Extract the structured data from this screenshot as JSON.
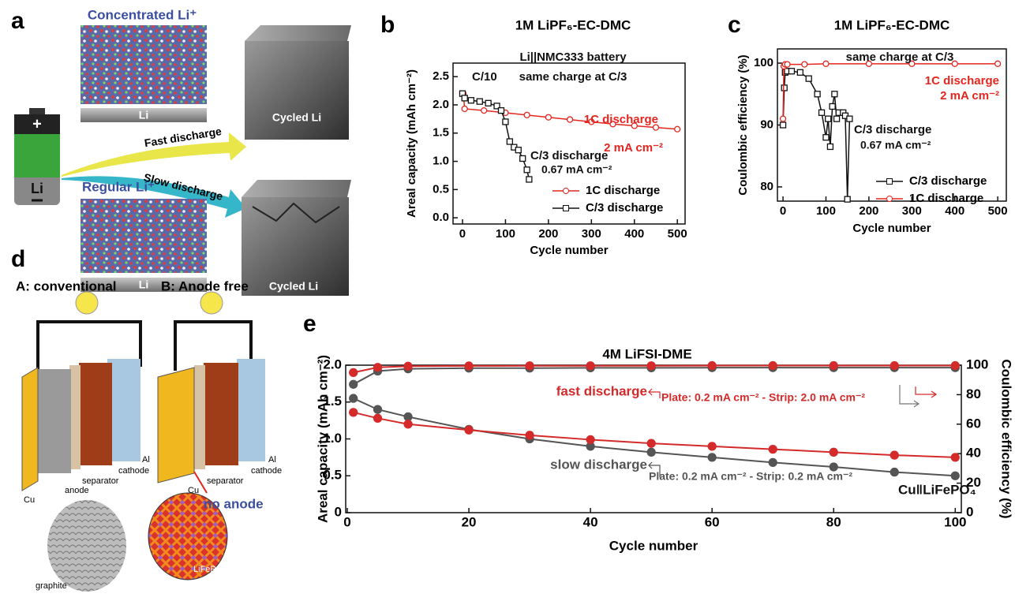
{
  "panel_a": {
    "label": "a",
    "concentrated": "Concentrated Li⁺",
    "li_top": "Li",
    "fast": "Fast discharge",
    "slow": "Slow discharge",
    "regular": "Regular Li⁺",
    "li_bottom": "Li",
    "battery_plus": "+",
    "battery_li": "Li",
    "cycled_top": "Cycled Li",
    "cycled_bottom": "Cycled Li"
  },
  "panel_d": {
    "label": "d",
    "title_a": "A: conventional",
    "title_b": "B: Anode free",
    "a_labels": [
      "Al",
      "cathode",
      "separator",
      "anode",
      "Cu",
      "graphite"
    ],
    "b_labels": [
      "Al",
      "cathode",
      "separator",
      "Cu",
      "no anode",
      "LiFePO₄"
    ]
  },
  "chart_data": [
    {
      "type": "line",
      "panel_label": "b",
      "title": "1M LiPF₆-EC-DMC",
      "x_label": "Cycle number",
      "y_label": "Areal capacity (mAh cm⁻²)",
      "xlim": [
        -22,
        518
      ],
      "ylim": [
        -0.11,
        2.74
      ],
      "xticks": [
        0,
        100,
        200,
        300,
        400,
        500
      ],
      "yticks": [
        {
          "value": 0,
          "label": "0.0"
        },
        0.5,
        {
          "value": 1,
          "label": "1.0"
        },
        1.5,
        {
          "value": 2,
          "label": "2.0"
        },
        2.5
      ],
      "legend": true,
      "annotations": [
        "C/10",
        "Li||NMC333 battery",
        "same charge at C/3",
        "1C discharge",
        "2 mA cm⁻²",
        "C/3 discharge",
        "0.67 mA cm⁻²"
      ],
      "series": [
        {
          "name": "1C discharge",
          "color": "#e3261f",
          "marker": "circle",
          "x": [
            0,
            2,
            5,
            50,
            100,
            150,
            200,
            250,
            300,
            350,
            400,
            450,
            500
          ],
          "values": [
            2.2,
            2.2,
            1.93,
            1.9,
            1.86,
            1.82,
            1.78,
            1.74,
            1.7,
            1.66,
            1.63,
            1.6,
            1.57
          ]
        },
        {
          "name": "C/3 discharge",
          "color": "#111111",
          "marker": "square",
          "x": [
            0,
            5,
            20,
            40,
            60,
            80,
            90,
            100,
            110,
            120,
            130,
            140,
            150,
            155
          ],
          "values": [
            2.2,
            2.12,
            2.08,
            2.06,
            2.03,
            1.98,
            1.9,
            1.7,
            1.35,
            1.25,
            1.2,
            1.05,
            0.85,
            0.68
          ]
        }
      ]
    },
    {
      "type": "line",
      "panel_label": "c",
      "title": "1M LiPF₆-EC-DMC",
      "x_label": "Cycle number",
      "y_label": "Coulombic efficiency (%)",
      "xlim": [
        -13,
        520
      ],
      "ylim": [
        77.7,
        102.3
      ],
      "xticks": [
        0,
        100,
        200,
        300,
        400,
        500
      ],
      "yticks": [
        80,
        90,
        100
      ],
      "legend": true,
      "annotations": [
        "same charge at C/3",
        "1C discharge",
        "2 mA cm⁻²",
        "C/3 discharge",
        "0.67 mA cm⁻²"
      ],
      "series": [
        {
          "name": "C/3 discharge",
          "color": "#111111",
          "marker": "square",
          "x": [
            0,
            3,
            5,
            10,
            20,
            40,
            60,
            80,
            90,
            100,
            105,
            110,
            115,
            120,
            125,
            130,
            140,
            145,
            150,
            155
          ],
          "values": [
            90,
            96,
            98.5,
            98.7,
            98.7,
            98.5,
            97.5,
            95,
            92,
            88,
            91,
            86.5,
            93,
            95,
            91,
            92,
            92,
            91.5,
            78,
            91
          ]
        },
        {
          "name": "1C discharge",
          "color": "#e3261f",
          "marker": "circle",
          "x": [
            0,
            2,
            5,
            10,
            50,
            100,
            200,
            300,
            400,
            500
          ],
          "values": [
            91,
            99.5,
            99.8,
            99.8,
            99.8,
            99.9,
            99.9,
            99.9,
            99.9,
            99.9
          ]
        }
      ]
    },
    {
      "type": "line",
      "panel_label": "e",
      "title": "4M LiFSI-DME",
      "x_label": "Cycle number",
      "y_label": "Areal capacity (mAh cm⁻²)",
      "y2_label": "Coulombic efficiency (%)",
      "xlim": [
        -0.26,
        101
      ],
      "ylim": [
        0,
        2.0
      ],
      "y2lim": [
        0,
        100
      ],
      "xticks": [
        0,
        20,
        40,
        60,
        80,
        100
      ],
      "yticks": [
        0,
        0.5,
        {
          "value": 1,
          "label": "1.0"
        },
        1.5,
        {
          "value": 2,
          "label": "2.0"
        }
      ],
      "y2ticks": [
        0,
        20,
        40,
        60,
        80,
        100
      ],
      "legend": false,
      "annotations": [
        "Plate: 0.2 mA cm⁻² - Strip: 2.0 mA cm⁻²",
        "Plate: 0.2 mA cm⁻² - Strip: 0.2 mA cm⁻²",
        "Cu‖LiFePO₄"
      ],
      "series": [
        {
          "name": "slow discharge",
          "color": "#555555",
          "marker": "circle",
          "filled": true,
          "x": [
            1,
            5,
            10,
            20,
            30,
            40,
            50,
            60,
            70,
            80,
            90,
            100
          ],
          "values": [
            1.55,
            1.4,
            1.3,
            1.13,
            1.0,
            0.9,
            0.82,
            0.75,
            0.68,
            0.62,
            0.55,
            0.5
          ]
        },
        {
          "name": "fast discharge",
          "color": "#d42a2a",
          "marker": "circle",
          "filled": true,
          "x": [
            1,
            5,
            10,
            20,
            30,
            40,
            50,
            60,
            70,
            80,
            90,
            100
          ],
          "values": [
            1.36,
            1.28,
            1.2,
            1.12,
            1.05,
            0.99,
            0.94,
            0.9,
            0.86,
            0.82,
            0.78,
            0.75
          ]
        },
        {
          "color": "#555555",
          "marker": "circle",
          "filled": true,
          "axis": "y2",
          "x": [
            1,
            5,
            10,
            20,
            30,
            40,
            50,
            60,
            70,
            80,
            90,
            100
          ],
          "values": [
            87,
            96,
            97.5,
            98,
            98,
            98.2,
            98.2,
            98.3,
            98.3,
            98.3,
            98.3,
            98.3
          ]
        },
        {
          "color": "#d42a2a",
          "marker": "circle",
          "filled": true,
          "axis": "y2",
          "x": [
            1,
            5,
            10,
            20,
            30,
            40,
            50,
            60,
            70,
            80,
            90,
            100
          ],
          "values": [
            95,
            98.5,
            99.3,
            99.5,
            99.6,
            99.6,
            99.6,
            99.7,
            99.7,
            99.7,
            99.7,
            99.7
          ]
        }
      ]
    }
  ]
}
